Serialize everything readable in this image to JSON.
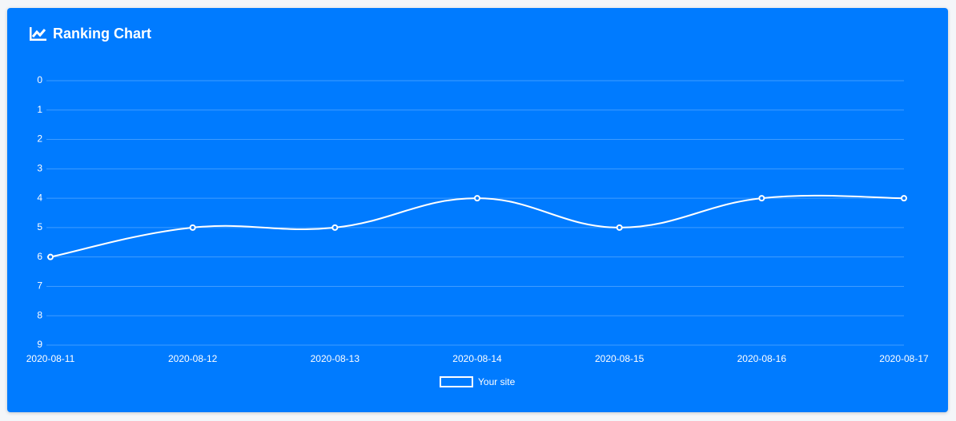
{
  "chart_data": {
    "type": "line",
    "title": "Ranking Chart",
    "categories": [
      "2020-08-11",
      "2020-08-12",
      "2020-08-13",
      "2020-08-14",
      "2020-08-15",
      "2020-08-16",
      "2020-08-17"
    ],
    "series": [
      {
        "name": "Your site",
        "color": "#ffffff",
        "values": [
          6,
          5,
          5,
          4,
          5,
          4,
          4
        ]
      }
    ],
    "ylim": [
      9,
      0
    ],
    "yticks": [
      0,
      1,
      2,
      3,
      4,
      5,
      6,
      7,
      8,
      9
    ],
    "grid": true
  }
}
